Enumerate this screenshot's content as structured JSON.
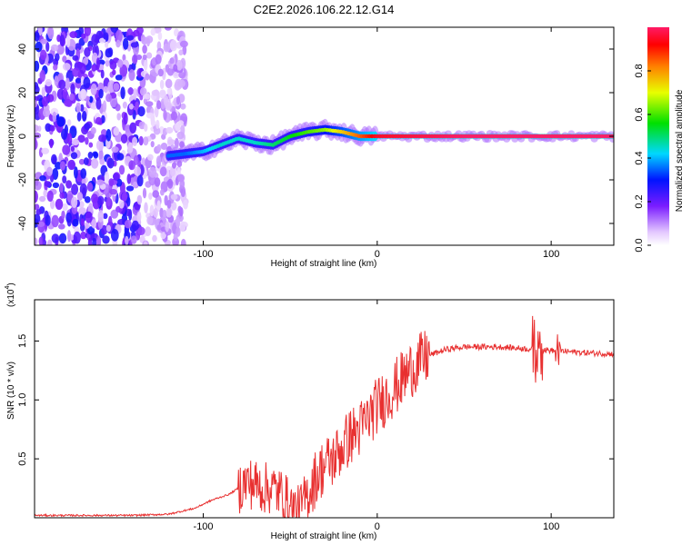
{
  "chart_data": [
    {
      "type": "heatmap",
      "title": "C2E2.2026.106.22.12.G14",
      "xlabel": "Height of straight line (km)",
      "ylabel": "Frequency (Hz)",
      "xlim": [
        -197,
        136
      ],
      "ylim": [
        -50,
        50
      ],
      "xticks": [
        -100,
        0,
        100
      ],
      "xtick_labels": [
        "-100",
        "0",
        "100"
      ],
      "yticks": [
        -40,
        -20,
        0,
        20,
        40
      ],
      "ytick_labels": [
        "-40",
        "-20",
        "0",
        "20",
        "40"
      ],
      "colorbar": {
        "label": "Normalized spectral amplitude",
        "range": [
          0,
          1
        ],
        "ticks": [
          0.0,
          0.2,
          0.4,
          0.6,
          0.8
        ],
        "tick_labels": [
          "0.0",
          "0.2",
          "0.4",
          "0.6",
          "0.8"
        ]
      },
      "noise_region": {
        "x_range": [
          -197,
          -115
        ],
        "amplitude": 0.25
      },
      "ridge": {
        "x": [
          -120,
          -110,
          -100,
          -90,
          -80,
          -70,
          -60,
          -50,
          -40,
          -30,
          -20,
          -10,
          0,
          50,
          100,
          136
        ],
        "y": [
          -9,
          -8,
          -7,
          -4,
          -1,
          -3,
          -4,
          0,
          2,
          3,
          2,
          0,
          0,
          0,
          0,
          0
        ],
        "amplitude": [
          0.35,
          0.35,
          0.4,
          0.45,
          0.45,
          0.45,
          0.5,
          0.55,
          0.6,
          0.65,
          0.75,
          0.85,
          0.95,
          1.0,
          1.0,
          1.0
        ]
      }
    },
    {
      "type": "line",
      "title": "",
      "xlabel": "Height of straight line (km)",
      "ylabel": "SNR (10 * v/v)",
      "y_multiplier": "(x10",
      "y_multiplier_exp": "4",
      "y_multiplier_close": ")",
      "xlim": [
        -197,
        136
      ],
      "ylim": [
        0,
        1.85
      ],
      "xticks": [
        -100,
        0,
        100
      ],
      "xtick_labels": [
        "-100",
        "0",
        "100"
      ],
      "yticks": [
        0.5,
        1.0,
        1.5
      ],
      "ytick_labels": [
        "0.5",
        "1.0",
        "1.5"
      ],
      "series": [
        {
          "name": "SNR",
          "color": "#e83030",
          "x": [
            -197,
            -140,
            -120,
            -105,
            -95,
            -85,
            -75,
            -70,
            -65,
            -60,
            -55,
            -50,
            -45,
            -40,
            -35,
            -30,
            -25,
            -20,
            -15,
            -10,
            -5,
            0,
            10,
            20,
            30,
            40,
            50,
            60,
            70,
            80,
            90,
            100,
            110,
            120,
            136
          ],
          "values": [
            0.02,
            0.02,
            0.03,
            0.08,
            0.15,
            0.2,
            0.3,
            0.28,
            0.25,
            0.25,
            0.2,
            0.1,
            0.05,
            0.2,
            0.35,
            0.45,
            0.5,
            0.6,
            0.7,
            0.75,
            0.85,
            0.95,
            1.1,
            1.27,
            1.38,
            1.43,
            1.45,
            1.45,
            1.45,
            1.44,
            1.43,
            1.42,
            1.41,
            1.4,
            1.39
          ]
        }
      ]
    }
  ]
}
